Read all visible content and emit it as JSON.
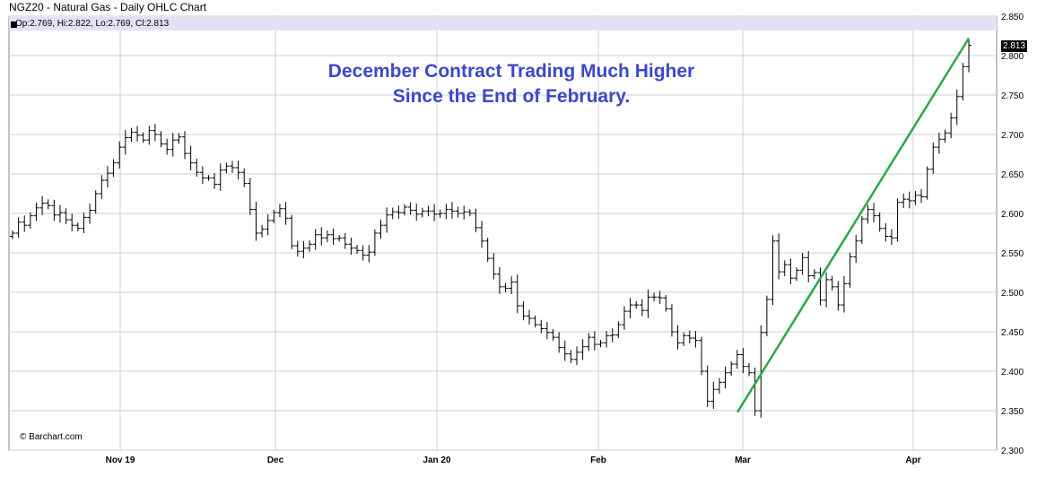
{
  "header": {
    "title": "NGZ20 - Natural Gas - Daily OHLC Chart",
    "ohlc_readout": "Op:2.769, Hi:2.822, Lo:2.769, Cl:2.813"
  },
  "annotation": {
    "line1": "December Contract Trading Much Higher",
    "line2": "Since the End of February."
  },
  "copyright": "© Barchart.com",
  "last_price_label": "2.813",
  "colors": {
    "bars": "#000000",
    "trendline": "#2aa84a",
    "annotation": "#3b48c7",
    "grid": "#cfcfcf"
  },
  "chart_data": {
    "type": "ohlc",
    "title": "NGZ20 - Natural Gas - Daily OHLC Chart",
    "xlabel": "",
    "ylabel": "",
    "ylim": [
      2.3,
      2.85
    ],
    "y_ticks": [
      "2.850",
      "2.800",
      "2.750",
      "2.700",
      "2.650",
      "2.600",
      "2.550",
      "2.500",
      "2.450",
      "2.400",
      "2.350",
      "2.300"
    ],
    "x_ticks": [
      "Nov 19",
      "Dec",
      "Jan 20",
      "Feb",
      "Mar",
      "Apr"
    ],
    "grid": true,
    "closes": [
      2.575,
      2.589,
      2.585,
      2.597,
      2.607,
      2.613,
      2.61,
      2.598,
      2.601,
      2.592,
      2.585,
      2.581,
      2.595,
      2.604,
      2.625,
      2.642,
      2.651,
      2.664,
      2.684,
      2.696,
      2.703,
      2.699,
      2.693,
      2.705,
      2.7,
      2.688,
      2.681,
      2.693,
      2.697,
      2.676,
      2.664,
      2.652,
      2.645,
      2.645,
      2.637,
      2.655,
      2.66,
      2.658,
      2.652,
      2.638,
      2.605,
      2.575,
      2.58,
      2.591,
      2.601,
      2.606,
      2.594,
      2.559,
      2.552,
      2.556,
      2.561,
      2.573,
      2.569,
      2.573,
      2.568,
      2.569,
      2.561,
      2.556,
      2.553,
      2.547,
      2.551,
      2.575,
      2.585,
      2.598,
      2.602,
      2.601,
      2.608,
      2.604,
      2.599,
      2.603,
      2.603,
      2.599,
      2.6,
      2.605,
      2.603,
      2.6,
      2.602,
      2.6,
      2.582,
      2.565,
      2.543,
      2.523,
      2.507,
      2.505,
      2.513,
      2.483,
      2.47,
      2.467,
      2.459,
      2.454,
      2.449,
      2.443,
      2.43,
      2.422,
      2.415,
      2.424,
      2.431,
      2.443,
      2.434,
      2.436,
      2.445,
      2.446,
      2.459,
      2.476,
      2.484,
      2.484,
      2.477,
      2.494,
      2.494,
      2.493,
      2.479,
      2.45,
      2.436,
      2.445,
      2.442,
      2.439,
      2.4,
      2.362,
      2.377,
      2.386,
      2.398,
      2.409,
      2.421,
      2.406,
      2.398,
      2.35,
      2.449,
      2.491,
      2.565,
      2.526,
      2.535,
      2.518,
      2.528,
      2.544,
      2.521,
      2.525,
      2.49,
      2.516,
      2.507,
      2.484,
      2.511,
      2.545,
      2.565,
      2.593,
      2.605,
      2.597,
      2.581,
      2.571,
      2.569,
      2.614,
      2.618,
      2.616,
      2.623,
      2.621,
      2.656,
      2.684,
      2.694,
      2.702,
      2.721,
      2.748,
      2.786,
      2.813
    ]
  }
}
